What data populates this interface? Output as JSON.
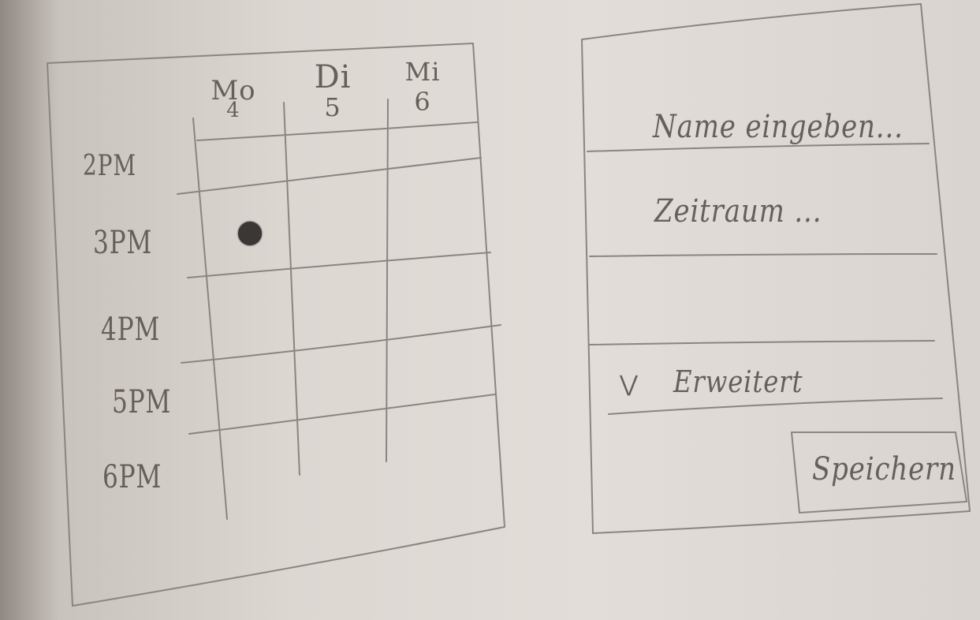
{
  "calendar": {
    "days": [
      {
        "name": "Mo",
        "date": "4"
      },
      {
        "name": "Di",
        "date": "5"
      },
      {
        "name": "Mi",
        "date": "6"
      }
    ],
    "times": [
      "2PM",
      "3PM",
      "4PM",
      "5PM",
      "6PM"
    ],
    "event_marker": {
      "day": "Mo",
      "time": "3PM"
    }
  },
  "form": {
    "name_placeholder": "Name eingeben...",
    "timespan_placeholder": "Zeitraum ...",
    "advanced_label": "Erweitert",
    "save_label": "Speichern"
  }
}
